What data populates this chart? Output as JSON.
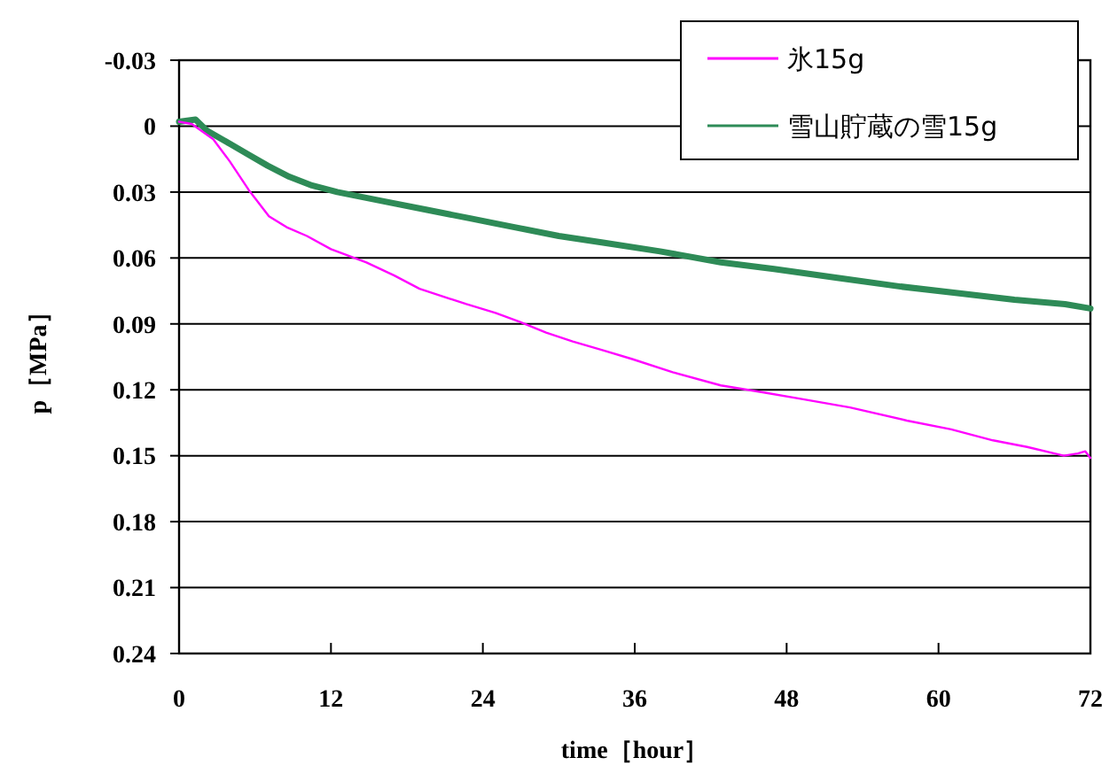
{
  "chart_data": {
    "type": "line",
    "xlabel": "time［hour］",
    "ylabel": "p［MPa］",
    "xlim": [
      0,
      72
    ],
    "xticks": [
      0,
      12,
      24,
      36,
      48,
      60,
      72
    ],
    "ylim": [
      0.24,
      -0.03
    ],
    "yticks": [
      -0.03,
      0,
      0.03,
      0.06,
      0.09,
      0.12,
      0.15,
      0.18,
      0.21,
      0.24
    ],
    "grid": "y",
    "legend": "top right",
    "marker": "none",
    "line_style": "solid",
    "series": [
      {
        "name": "氷15g",
        "color": "#ff00ff",
        "x": [
          0,
          1,
          2.7,
          4,
          5.5,
          7.1,
          8.5,
          10.1,
          12,
          14.8,
          17,
          19,
          22.7,
          25,
          26.9,
          29,
          31.1,
          33.5,
          35.8,
          39,
          42.8,
          46,
          49,
          53,
          57.5,
          61,
          64.3,
          67,
          69.9,
          71,
          71.6,
          72
        ],
        "values": [
          -0.002,
          -0.001,
          0.006,
          0.016,
          0.029,
          0.041,
          0.046,
          0.05,
          0.056,
          0.062,
          0.068,
          0.074,
          0.081,
          0.085,
          0.089,
          0.094,
          0.098,
          0.102,
          0.106,
          0.112,
          0.118,
          0.121,
          0.124,
          0.128,
          0.134,
          0.138,
          0.143,
          0.146,
          0.15,
          0.149,
          0.148,
          0.151
        ]
      },
      {
        "name": "雪山貯蔵の雪15g",
        "color": "#2e8b57",
        "x": [
          0,
          1.3,
          2.2,
          4,
          5.5,
          7,
          8.7,
          10.5,
          12.5,
          16,
          19.5,
          23,
          26.5,
          30,
          33.5,
          38,
          42.8,
          47,
          52,
          57,
          61.5,
          66,
          70,
          72
        ],
        "values": [
          -0.002,
          -0.003,
          0.002,
          0.008,
          0.013,
          0.018,
          0.023,
          0.027,
          0.03,
          0.034,
          0.038,
          0.042,
          0.046,
          0.05,
          0.053,
          0.057,
          0.062,
          0.065,
          0.069,
          0.073,
          0.076,
          0.079,
          0.081,
          0.083
        ]
      }
    ]
  }
}
